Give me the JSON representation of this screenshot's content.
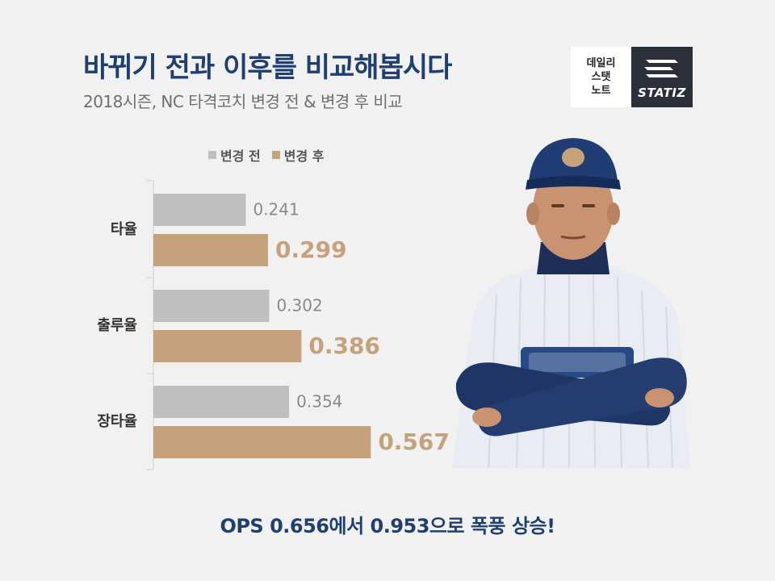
{
  "title": "바뀌기 전과 이후를 비교해봅시다",
  "subtitle": "2018시즌, NC 타격코치 변경 전 & 변경 후 비교",
  "logo": {
    "line1": "데일리",
    "line2": "스탯",
    "line3": "노트",
    "brand": "STATIZ"
  },
  "footer": "OPS 0.656에서 0.953으로 폭풍 상승!",
  "colors": {
    "before": "#bfbfbf",
    "after": "#c5a27c",
    "title": "#1f3f72"
  },
  "chart_data": {
    "type": "bar",
    "orientation": "horizontal",
    "categories": [
      "타율",
      "출루율",
      "장타율"
    ],
    "series": [
      {
        "name": "변경 전",
        "values": [
          0.241,
          0.302,
          0.354
        ],
        "labels": [
          "0.241",
          "0.302",
          "0.354"
        ]
      },
      {
        "name": "변경 후",
        "values": [
          0.299,
          0.386,
          0.567
        ],
        "labels": [
          "0.299",
          "0.386",
          "0.567"
        ]
      }
    ],
    "legend": "top",
    "grid": false
  }
}
